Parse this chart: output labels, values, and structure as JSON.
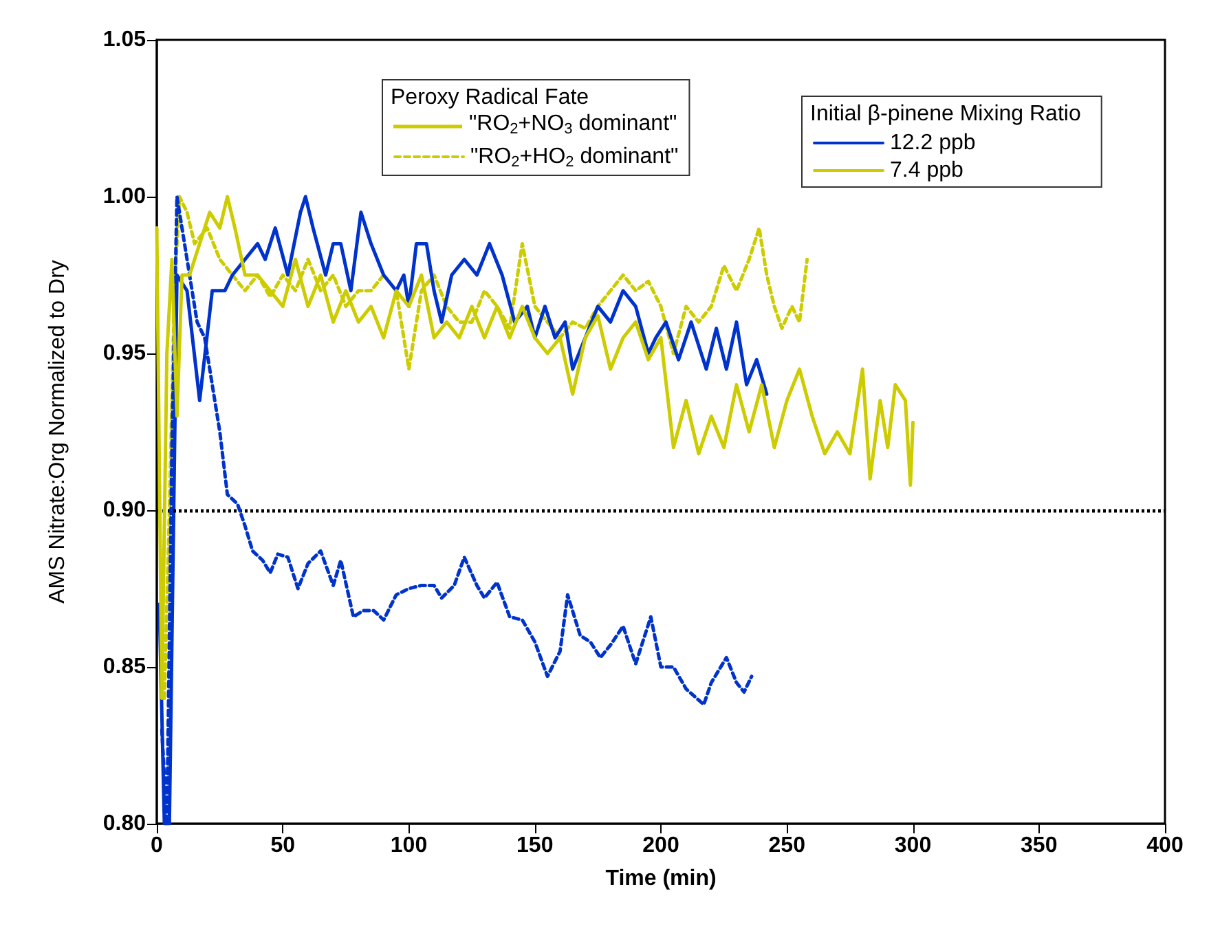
{
  "chart_data": {
    "type": "line",
    "xlabel": "Time (min)",
    "ylabel": "AMS Nitrate:Org Normalized to Dry",
    "legend_title": [
      "Peroxy Radical Fate",
      "Initial β-pinene Mixing Ratio"
    ],
    "legend": [
      "top center",
      "top right"
    ],
    "xlim": [
      0,
      400
    ],
    "xticks": [
      0,
      50,
      100,
      150,
      200,
      250,
      300,
      350,
      400
    ],
    "ylim": [
      0.8,
      1.05
    ],
    "yticks": [
      {
        "value": 0.8,
        "label": "0.80"
      },
      {
        "value": 0.85,
        "label": "0.85"
      },
      {
        "value": 0.9,
        "label": "0.90"
      },
      {
        "value": 0.95,
        "label": "0.95"
      },
      {
        "value": 1.0,
        "label": "1.00"
      },
      {
        "value": 1.05,
        "label": "1.05"
      }
    ],
    "grid": false,
    "marker": "none",
    "line_style": "solid",
    "annotations": [
      "\"RO$_{2}$+NO$_{3}$ dominant\""
    ],
    "ref_lines": [
      {
        "axis": "y",
        "value": 0.9,
        "color": "#000000",
        "line_style": "dotted"
      }
    ],
    "series": [
      {
        "name": "\"RO$_{2}$+HO$_{2}$ dominant\"",
        "color": "#cccc00",
        "line_style": "dashed",
        "x": [
          3,
          5,
          7,
          9,
          12,
          15,
          20,
          25,
          30,
          35,
          40,
          45,
          50,
          55,
          60,
          65,
          70,
          75,
          80,
          85,
          90,
          95,
          100,
          105,
          110,
          115,
          120,
          125,
          130,
          135,
          140,
          145,
          150,
          155,
          160,
          165,
          170,
          175,
          180,
          185,
          190,
          195,
          200,
          205,
          210,
          215,
          220,
          225,
          230,
          235,
          239,
          242,
          245,
          248,
          252,
          255,
          258
        ],
        "values": [
          0.84,
          0.9,
          0.97,
          1.0,
          0.995,
          0.985,
          0.99,
          0.98,
          0.975,
          0.97,
          0.975,
          0.968,
          0.975,
          0.97,
          0.98,
          0.97,
          0.975,
          0.965,
          0.97,
          0.97,
          0.975,
          0.97,
          0.945,
          0.97,
          0.975,
          0.965,
          0.96,
          0.96,
          0.97,
          0.965,
          0.958,
          0.985,
          0.965,
          0.96,
          0.955,
          0.96,
          0.958,
          0.965,
          0.97,
          0.975,
          0.97,
          0.973,
          0.965,
          0.95,
          0.965,
          0.96,
          0.965,
          0.978,
          0.97,
          0.98,
          0.99,
          0.975,
          0.965,
          0.958,
          0.965,
          0.96,
          0.98
        ]
      },
      {
        "name": "12.2 ppb",
        "color": "#0033cc",
        "x": [
          1,
          3,
          5,
          8,
          12,
          17,
          22,
          27,
          30,
          35,
          40,
          43,
          47,
          52,
          57,
          59,
          62,
          67,
          70,
          73,
          77,
          81,
          85,
          90,
          95,
          98,
          100,
          103,
          107,
          110,
          113,
          117,
          122,
          127,
          132,
          137,
          142,
          147,
          150,
          154,
          158,
          162,
          165,
          170,
          175,
          180,
          185,
          190,
          195,
          198,
          202,
          207,
          212,
          218,
          222,
          226,
          230,
          234,
          238,
          242
        ],
        "values": [
          0.87,
          0.8,
          0.8,
          0.975,
          0.97,
          0.935,
          0.97,
          0.97,
          0.975,
          0.98,
          0.985,
          0.98,
          0.99,
          0.975,
          0.995,
          1.0,
          0.99,
          0.975,
          0.985,
          0.985,
          0.97,
          0.995,
          0.985,
          0.975,
          0.97,
          0.975,
          0.965,
          0.985,
          0.985,
          0.97,
          0.96,
          0.975,
          0.98,
          0.975,
          0.985,
          0.975,
          0.96,
          0.965,
          0.955,
          0.965,
          0.955,
          0.96,
          0.945,
          0.955,
          0.965,
          0.96,
          0.97,
          0.965,
          0.95,
          0.955,
          0.96,
          0.948,
          0.96,
          0.945,
          0.958,
          0.945,
          0.96,
          0.94,
          0.948,
          0.937
        ]
      },
      {
        "color": "#0033cc",
        "line_style": "dashed",
        "x": [
          2,
          4,
          6,
          8,
          10,
          13,
          16,
          19,
          22,
          25,
          28,
          32,
          35,
          38,
          42,
          45,
          48,
          52,
          56,
          60,
          65,
          70,
          73,
          78,
          82,
          86,
          90,
          95,
          100,
          105,
          110,
          113,
          118,
          122,
          127,
          130,
          135,
          140,
          145,
          150,
          155,
          160,
          163,
          168,
          172,
          176,
          180,
          185,
          190,
          196,
          200,
          205,
          210,
          217,
          220,
          226,
          230,
          233,
          236
        ],
        "values": [
          0.83,
          0.8,
          0.92,
          1.0,
          0.99,
          0.975,
          0.96,
          0.955,
          0.94,
          0.925,
          0.905,
          0.902,
          0.895,
          0.887,
          0.884,
          0.88,
          0.886,
          0.885,
          0.875,
          0.883,
          0.887,
          0.876,
          0.884,
          0.866,
          0.868,
          0.868,
          0.865,
          0.873,
          0.875,
          0.876,
          0.876,
          0.872,
          0.876,
          0.885,
          0.876,
          0.872,
          0.877,
          0.866,
          0.865,
          0.858,
          0.847,
          0.855,
          0.873,
          0.86,
          0.858,
          0.853,
          0.857,
          0.863,
          0.851,
          0.866,
          0.85,
          0.85,
          0.843,
          0.838,
          0.845,
          0.853,
          0.845,
          0.842,
          0.847
        ]
      },
      {
        "name": "7.4 ppb",
        "color": "#cccc00",
        "x": [
          0,
          2,
          4,
          6,
          8,
          10,
          13,
          17,
          21,
          25,
          28,
          31,
          35,
          40,
          45,
          50,
          55,
          60,
          65,
          70,
          75,
          80,
          85,
          90,
          95,
          100,
          105,
          110,
          115,
          120,
          125,
          130,
          135,
          140,
          145,
          150,
          155,
          160,
          165,
          170,
          175,
          180,
          185,
          190,
          195,
          200,
          205,
          210,
          215,
          220,
          225,
          230,
          235,
          240,
          245,
          250,
          255,
          260,
          265,
          270,
          275,
          280,
          283,
          287,
          290,
          293,
          297,
          299,
          300
        ],
        "values": [
          0.99,
          0.84,
          0.95,
          0.98,
          0.93,
          0.975,
          0.975,
          0.985,
          0.995,
          0.99,
          1.0,
          0.99,
          0.975,
          0.975,
          0.97,
          0.965,
          0.98,
          0.965,
          0.975,
          0.96,
          0.97,
          0.96,
          0.965,
          0.955,
          0.97,
          0.965,
          0.975,
          0.955,
          0.96,
          0.955,
          0.965,
          0.955,
          0.965,
          0.955,
          0.965,
          0.955,
          0.95,
          0.955,
          0.937,
          0.955,
          0.962,
          0.945,
          0.955,
          0.96,
          0.948,
          0.955,
          0.92,
          0.935,
          0.918,
          0.93,
          0.92,
          0.94,
          0.925,
          0.94,
          0.92,
          0.935,
          0.945,
          0.93,
          0.918,
          0.925,
          0.918,
          0.945,
          0.91,
          0.935,
          0.92,
          0.94,
          0.935,
          0.908,
          0.928
        ]
      }
    ]
  }
}
